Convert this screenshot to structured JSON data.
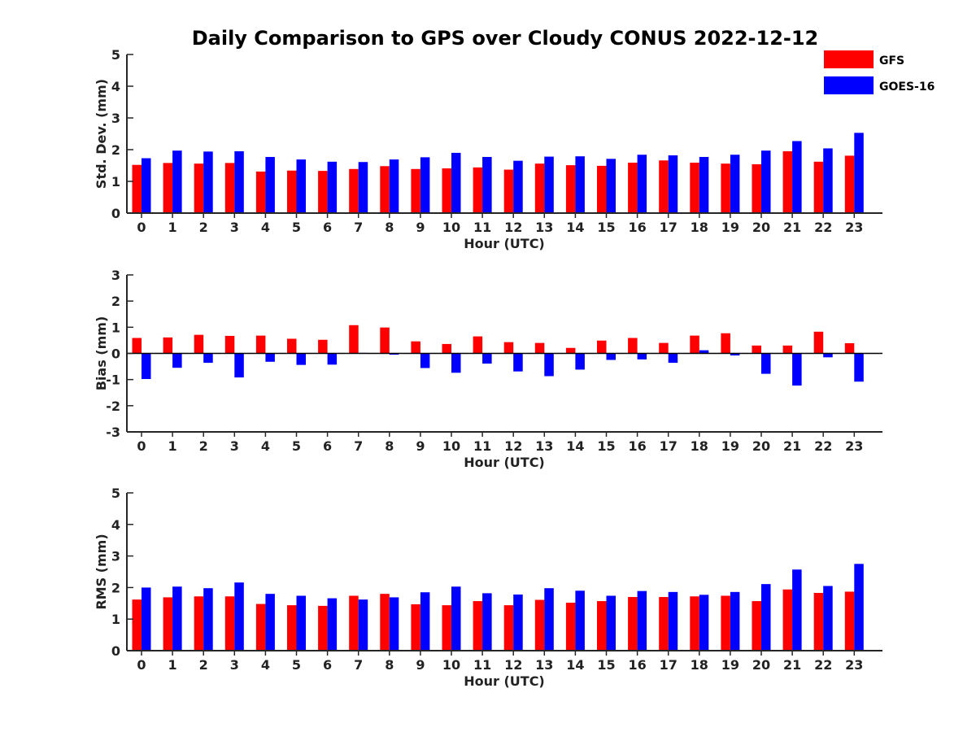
{
  "figure": {
    "title": "Daily Comparison to GPS over Cloudy CONUS 2022-12-12"
  },
  "legend": [
    {
      "name": "GFS",
      "color": "#ff0000"
    },
    {
      "name": "GOES-16",
      "color": "#0000ff"
    }
  ],
  "chart_data": [
    {
      "type": "bar",
      "xlabel": "Hour (UTC)",
      "ylabel": "Std. Dev. (mm)",
      "ylim": [
        0,
        5
      ],
      "yticks": [
        0,
        1,
        2,
        3,
        4,
        5
      ],
      "categories": [
        "0",
        "1",
        "2",
        "3",
        "4",
        "5",
        "6",
        "7",
        "8",
        "9",
        "10",
        "11",
        "12",
        "13",
        "14",
        "15",
        "16",
        "17",
        "18",
        "19",
        "20",
        "21",
        "22",
        "23"
      ],
      "legend_position": "top-right",
      "series": [
        {
          "name": "GFS",
          "color": "#ff0000",
          "values": [
            1.52,
            1.58,
            1.56,
            1.58,
            1.31,
            1.34,
            1.33,
            1.39,
            1.48,
            1.39,
            1.41,
            1.44,
            1.37,
            1.56,
            1.51,
            1.49,
            1.59,
            1.66,
            1.59,
            1.56,
            1.54,
            1.95,
            1.62,
            1.81
          ]
        },
        {
          "name": "GOES-16",
          "color": "#0000ff",
          "values": [
            1.73,
            1.97,
            1.94,
            1.95,
            1.77,
            1.69,
            1.62,
            1.61,
            1.69,
            1.76,
            1.9,
            1.77,
            1.65,
            1.78,
            1.79,
            1.71,
            1.84,
            1.82,
            1.77,
            1.84,
            1.97,
            2.27,
            2.04,
            2.53
          ]
        }
      ]
    },
    {
      "type": "bar",
      "xlabel": "Hour (UTC)",
      "ylabel": "Bias (mm)",
      "ylim": [
        -3,
        3
      ],
      "yticks": [
        -3,
        -2,
        -1,
        0,
        1,
        2,
        3
      ],
      "categories": [
        "0",
        "1",
        "2",
        "3",
        "4",
        "5",
        "6",
        "7",
        "8",
        "9",
        "10",
        "11",
        "12",
        "13",
        "14",
        "15",
        "16",
        "17",
        "18",
        "19",
        "20",
        "21",
        "22",
        "23"
      ],
      "series": [
        {
          "name": "GFS",
          "color": "#ff0000",
          "values": [
            0.59,
            0.61,
            0.71,
            0.67,
            0.68,
            0.56,
            0.52,
            1.08,
            0.99,
            0.46,
            0.36,
            0.65,
            0.43,
            0.4,
            0.21,
            0.49,
            0.59,
            0.4,
            0.68,
            0.77,
            0.3,
            0.3,
            0.83,
            0.39
          ]
        },
        {
          "name": "GOES-16",
          "color": "#0000ff",
          "values": [
            -0.98,
            -0.55,
            -0.36,
            -0.92,
            -0.32,
            -0.44,
            -0.43,
            0.02,
            -0.05,
            -0.56,
            -0.74,
            -0.39,
            -0.69,
            -0.87,
            -0.62,
            -0.25,
            -0.23,
            -0.36,
            0.12,
            -0.08,
            -0.78,
            -1.23,
            -0.15,
            -1.08
          ]
        }
      ]
    },
    {
      "type": "bar",
      "xlabel": "Hour (UTC)",
      "ylabel": "RMS (mm)",
      "ylim": [
        0,
        5
      ],
      "yticks": [
        0,
        1,
        2,
        3,
        4,
        5
      ],
      "categories": [
        "0",
        "1",
        "2",
        "3",
        "4",
        "5",
        "6",
        "7",
        "8",
        "9",
        "10",
        "11",
        "12",
        "13",
        "14",
        "15",
        "16",
        "17",
        "18",
        "19",
        "20",
        "21",
        "22",
        "23"
      ],
      "series": [
        {
          "name": "GFS",
          "color": "#ff0000",
          "values": [
            1.62,
            1.69,
            1.72,
            1.72,
            1.48,
            1.44,
            1.42,
            1.74,
            1.8,
            1.47,
            1.44,
            1.57,
            1.44,
            1.61,
            1.52,
            1.57,
            1.7,
            1.7,
            1.72,
            1.74,
            1.57,
            1.94,
            1.83,
            1.87
          ]
        },
        {
          "name": "GOES-16",
          "color": "#0000ff",
          "values": [
            2.0,
            2.03,
            1.98,
            2.16,
            1.8,
            1.74,
            1.66,
            1.62,
            1.69,
            1.85,
            2.03,
            1.82,
            1.78,
            1.98,
            1.9,
            1.74,
            1.89,
            1.86,
            1.77,
            1.86,
            2.11,
            2.57,
            2.05,
            2.75
          ]
        }
      ]
    }
  ]
}
